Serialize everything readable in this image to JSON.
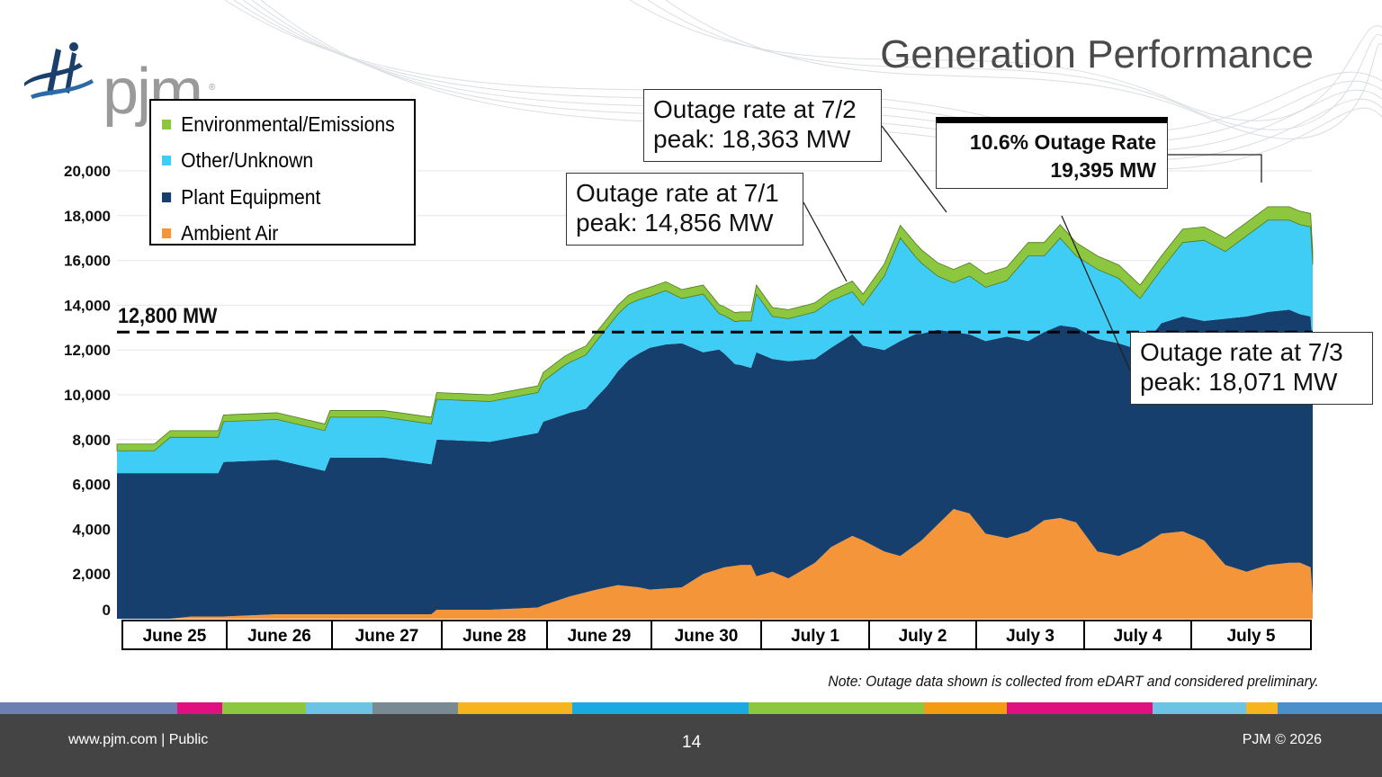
{
  "header": {
    "logo_text": "pjm",
    "logo_mark": "®",
    "title": "Generation Performance"
  },
  "legend": [
    {
      "label": "Environmental/Emissions",
      "color": "#8dc63f"
    },
    {
      "label": "Other/Unknown",
      "color": "#3fcdf5"
    },
    {
      "label": "Plant Equipment",
      "color": "#173f6d"
    },
    {
      "label": "Ambient Air",
      "color": "#f4953a"
    }
  ],
  "callouts": {
    "july1": [
      "Outage rate at 7/1",
      "peak: 14,856 MW"
    ],
    "july2": [
      "Outage rate at 7/2",
      "peak: 18,363 MW"
    ],
    "july3": [
      "Outage rate at 7/3",
      "peak: 18,071 MW"
    ],
    "peak": [
      "10.6% Outage Rate",
      "19,395 MW"
    ]
  },
  "threshold_label": "12,800 MW",
  "note": "Note: Outage data shown is collected from eDART and considered preliminary.",
  "footer": {
    "left": "www.pjm.com | Public",
    "page": "14",
    "right": "PJM © 2026"
  },
  "chart_data": {
    "type": "area",
    "stacked": true,
    "title": "",
    "xlabel": "",
    "ylabel": "",
    "ylim": [
      0,
      20000
    ],
    "yticks": [
      0,
      2000,
      4000,
      6000,
      8000,
      10000,
      12000,
      14000,
      16000,
      18000,
      20000
    ],
    "ytick_labels": [
      "0",
      "2,000",
      "4,000",
      "6,000",
      "8,000",
      "10,000",
      "12,000",
      "14,000",
      "16,000",
      "18,000",
      "20,000"
    ],
    "categories": [
      "June 25",
      "June 26",
      "June 27",
      "June 28",
      "June 29",
      "June 30",
      "July 1",
      "July 2",
      "July 3",
      "July 4",
      "July 5"
    ],
    "x_unit": "day index (0 = start of June 25)",
    "xlim": [
      0,
      11.22
    ],
    "threshold": 12800,
    "grid": "horizontal",
    "legend_position": "top-left",
    "series": [
      {
        "name": "Ambient Air",
        "x": [
          0,
          0.35,
          0.5,
          0.7,
          0.95,
          1.0,
          1.5,
          1.95,
          2.0,
          2.95,
          3.0,
          3.5,
          3.95,
          4.0,
          4.25,
          4.5,
          4.7,
          4.9,
          5.0,
          5.3,
          5.5,
          5.7,
          5.85,
          5.95,
          6.0,
          6.15,
          6.3,
          6.55,
          6.7,
          6.9,
          7.0,
          7.2,
          7.35,
          7.55,
          7.7,
          7.85,
          8.0,
          8.15,
          8.35,
          8.55,
          8.7,
          8.85,
          9.0,
          9.2,
          9.4,
          9.6,
          9.8,
          10.0,
          10.2,
          10.4,
          10.6,
          10.8,
          11.0,
          11.1,
          11.2,
          11.22
        ],
        "values": [
          0,
          0,
          0,
          100,
          100,
          100,
          200,
          200,
          200,
          200,
          400,
          400,
          500,
          600,
          1000,
          1300,
          1500,
          1400,
          1300,
          1400,
          2000,
          2300,
          2400,
          2400,
          1900,
          2100,
          1800,
          2500,
          3200,
          3700,
          3500,
          3000,
          2800,
          3500,
          4200,
          4900,
          4700,
          3800,
          3600,
          3900,
          4400,
          4500,
          4300,
          3000,
          2800,
          3200,
          3800,
          3900,
          3500,
          2400,
          2100,
          2400,
          2500,
          2500,
          2300,
          1000
        ]
      },
      {
        "name": "Plant Equipment",
        "x": [
          0,
          0.35,
          0.5,
          0.7,
          0.95,
          1.0,
          1.5,
          1.95,
          2.0,
          2.5,
          2.95,
          3.0,
          3.5,
          3.95,
          4.0,
          4.2,
          4.4,
          4.6,
          4.8,
          5.0,
          5.15,
          5.3,
          5.5,
          5.65,
          5.8,
          5.95,
          6.0,
          6.15,
          6.3,
          6.55,
          6.7,
          6.9,
          7.0,
          7.2,
          7.35,
          7.5,
          7.7,
          7.85,
          8.0,
          8.15,
          8.35,
          8.55,
          8.7,
          8.85,
          9.0,
          9.2,
          9.4,
          9.6,
          9.8,
          10.0,
          10.2,
          10.4,
          10.6,
          10.8,
          11.0,
          11.1,
          11.2,
          11.22
        ],
        "values": [
          6500,
          6500,
          6500,
          6400,
          6400,
          6900,
          6900,
          6400,
          7000,
          7000,
          6700,
          7600,
          7500,
          7800,
          8200,
          8200,
          8200,
          9000,
          10100,
          10800,
          10900,
          10900,
          9900,
          9800,
          9000,
          8800,
          10000,
          9500,
          9700,
          9100,
          8900,
          9000,
          8700,
          9000,
          9600,
          9400,
          8700,
          7900,
          8000,
          8600,
          9000,
          8500,
          8400,
          8600,
          8700,
          9500,
          9500,
          8800,
          9400,
          9600,
          9800,
          11000,
          11400,
          11300,
          11300,
          11100,
          11200,
          11000
        ]
      },
      {
        "name": "Other/Unknown",
        "x": [
          0,
          0.35,
          0.5,
          0.7,
          0.95,
          1.0,
          1.5,
          1.95,
          2.0,
          2.5,
          2.95,
          3.0,
          3.5,
          3.95,
          4.0,
          4.2,
          4.4,
          4.6,
          4.8,
          5.0,
          5.15,
          5.3,
          5.5,
          5.65,
          5.8,
          5.95,
          6.0,
          6.15,
          6.3,
          6.55,
          6.7,
          6.9,
          7.0,
          7.2,
          7.35,
          7.5,
          7.7,
          7.85,
          8.0,
          8.15,
          8.35,
          8.55,
          8.7,
          8.85,
          9.0,
          9.2,
          9.4,
          9.6,
          9.8,
          10.0,
          10.2,
          10.4,
          10.6,
          10.8,
          11.0,
          11.1,
          11.2,
          11.22
        ],
        "values": [
          1000,
          1000,
          1600,
          1600,
          1600,
          1800,
          1800,
          1800,
          1800,
          1800,
          1800,
          1800,
          1800,
          1800,
          1800,
          2200,
          2400,
          2600,
          2500,
          2300,
          2400,
          2000,
          2600,
          1600,
          1900,
          2100,
          2600,
          1900,
          1900,
          2100,
          2100,
          1900,
          1800,
          3300,
          4600,
          3400,
          2400,
          2200,
          2600,
          2400,
          2500,
          3800,
          3400,
          3900,
          3200,
          3100,
          2900,
          2300,
          2400,
          3300,
          3600,
          3000,
          3600,
          4100,
          4000,
          4000,
          4000,
          3800
        ]
      },
      {
        "name": "Environmental/Emissions",
        "x": [
          0,
          0.35,
          0.5,
          0.7,
          0.95,
          1.0,
          1.5,
          1.95,
          2.0,
          2.5,
          2.95,
          3.0,
          3.5,
          3.95,
          4.0,
          4.5,
          5.0,
          5.5,
          6.0,
          6.5,
          7.0,
          7.5,
          8.0,
          8.5,
          9.0,
          9.5,
          10.0,
          10.5,
          11.0,
          11.22
        ],
        "values": [
          300,
          300,
          300,
          300,
          300,
          300,
          300,
          300,
          300,
          300,
          300,
          300,
          300,
          300,
          400,
          400,
          400,
          400,
          400,
          400,
          500,
          600,
          600,
          600,
          600,
          600,
          600,
          600,
          600,
          600
        ]
      }
    ]
  }
}
